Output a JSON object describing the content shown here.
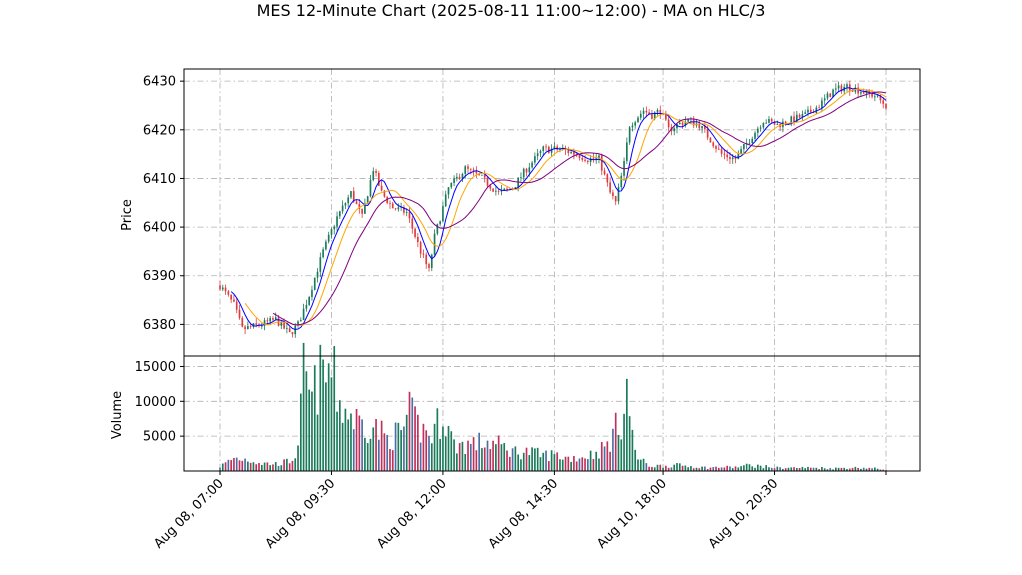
{
  "chart_data": {
    "type": "candlestick",
    "title": "MES 12-Minute Chart (2025-08-11 11:00~12:00) - MA on HLC/3",
    "price_panel": {
      "ylabel": "Price",
      "ylim": [
        6373.5,
        6432.5
      ],
      "yticks": [
        6380,
        6390,
        6400,
        6410,
        6420,
        6430
      ],
      "grid": true,
      "up_color": "#1a7a5a",
      "down_color": "#e03a3a",
      "moving_averages": [
        {
          "color": "#0000ff",
          "period": 5
        },
        {
          "color": "#ffa500",
          "period": 10
        },
        {
          "color": "#800080",
          "period": 20
        }
      ]
    },
    "volume_panel": {
      "ylabel": "Volume",
      "ylim": [
        0,
        16500
      ],
      "yticks": [
        5000,
        10000,
        15000
      ],
      "grid": true
    },
    "x_axis": {
      "bar_count": 240,
      "tick_labels": [
        "Aug 08, 07:00",
        "Aug 08, 09:30",
        "Aug 08, 12:00",
        "Aug 08, 14:30",
        "Aug 10, 18:00",
        "Aug 10, 20:30"
      ],
      "tick_label_rotation": 45
    },
    "price_anchors": [
      [
        0,
        6388
      ],
      [
        5,
        6384
      ],
      [
        8,
        6379
      ],
      [
        15,
        6380
      ],
      [
        20,
        6381
      ],
      [
        25,
        6378
      ],
      [
        28,
        6380
      ],
      [
        32,
        6386
      ],
      [
        37,
        6395
      ],
      [
        42,
        6402
      ],
      [
        47,
        6407
      ],
      [
        51,
        6402
      ],
      [
        55,
        6412
      ],
      [
        58,
        6407
      ],
      [
        62,
        6404
      ],
      [
        67,
        6403
      ],
      [
        72,
        6395
      ],
      [
        75,
        6391
      ],
      [
        77,
        6398
      ],
      [
        82,
        6408
      ],
      [
        88,
        6412
      ],
      [
        94,
        6410
      ],
      [
        100,
        6407
      ],
      [
        105,
        6408
      ],
      [
        110,
        6412
      ],
      [
        116,
        6416
      ],
      [
        122,
        6416
      ],
      [
        128,
        6415
      ],
      [
        132,
        6414
      ],
      [
        136,
        6414
      ],
      [
        140,
        6407
      ],
      [
        142,
        6405
      ],
      [
        145,
        6413
      ],
      [
        147,
        6421
      ],
      [
        152,
        6424
      ],
      [
        155,
        6423
      ],
      [
        158,
        6424
      ],
      [
        161,
        6420
      ],
      [
        164,
        6421
      ],
      [
        168,
        6422
      ],
      [
        172,
        6421
      ],
      [
        176,
        6418
      ],
      [
        180,
        6415
      ],
      [
        185,
        6414
      ],
      [
        190,
        6418
      ],
      [
        195,
        6422
      ],
      [
        200,
        6421
      ],
      [
        205,
        6422
      ],
      [
        210,
        6423
      ],
      [
        215,
        6425
      ],
      [
        220,
        6428
      ],
      [
        225,
        6429
      ],
      [
        230,
        6428
      ],
      [
        235,
        6427
      ],
      [
        239,
        6425
      ]
    ],
    "volume_anchors": [
      [
        0,
        700
      ],
      [
        5,
        2000
      ],
      [
        10,
        1800
      ],
      [
        15,
        1200
      ],
      [
        20,
        1100
      ],
      [
        25,
        1500
      ],
      [
        28,
        3000
      ],
      [
        30,
        15000
      ],
      [
        33,
        10500
      ],
      [
        35,
        14000
      ],
      [
        40,
        15500
      ],
      [
        43,
        10500
      ],
      [
        46,
        9000
      ],
      [
        50,
        7500
      ],
      [
        55,
        7000
      ],
      [
        60,
        5000
      ],
      [
        65,
        6000
      ],
      [
        68,
        8800
      ],
      [
        72,
        6500
      ],
      [
        76,
        5500
      ],
      [
        80,
        9000
      ],
      [
        84,
        4000
      ],
      [
        90,
        4200
      ],
      [
        96,
        4500
      ],
      [
        100,
        4000
      ],
      [
        106,
        3000
      ],
      [
        110,
        3000
      ],
      [
        115,
        2500
      ],
      [
        120,
        2500
      ],
      [
        125,
        2000
      ],
      [
        130,
        2200
      ],
      [
        135,
        2800
      ],
      [
        139,
        4000
      ],
      [
        142,
        6500
      ],
      [
        144,
        8000
      ],
      [
        146,
        13000
      ],
      [
        148,
        5000
      ],
      [
        150,
        2000
      ],
      [
        154,
        800
      ],
      [
        160,
        800
      ],
      [
        165,
        900
      ],
      [
        170,
        700
      ],
      [
        175,
        500
      ],
      [
        180,
        600
      ],
      [
        185,
        600
      ],
      [
        190,
        900
      ],
      [
        195,
        700
      ],
      [
        200,
        500
      ],
      [
        205,
        500
      ],
      [
        210,
        500
      ],
      [
        215,
        500
      ],
      [
        220,
        400
      ],
      [
        225,
        500
      ],
      [
        230,
        500
      ],
      [
        235,
        400
      ],
      [
        239,
        200
      ]
    ]
  }
}
